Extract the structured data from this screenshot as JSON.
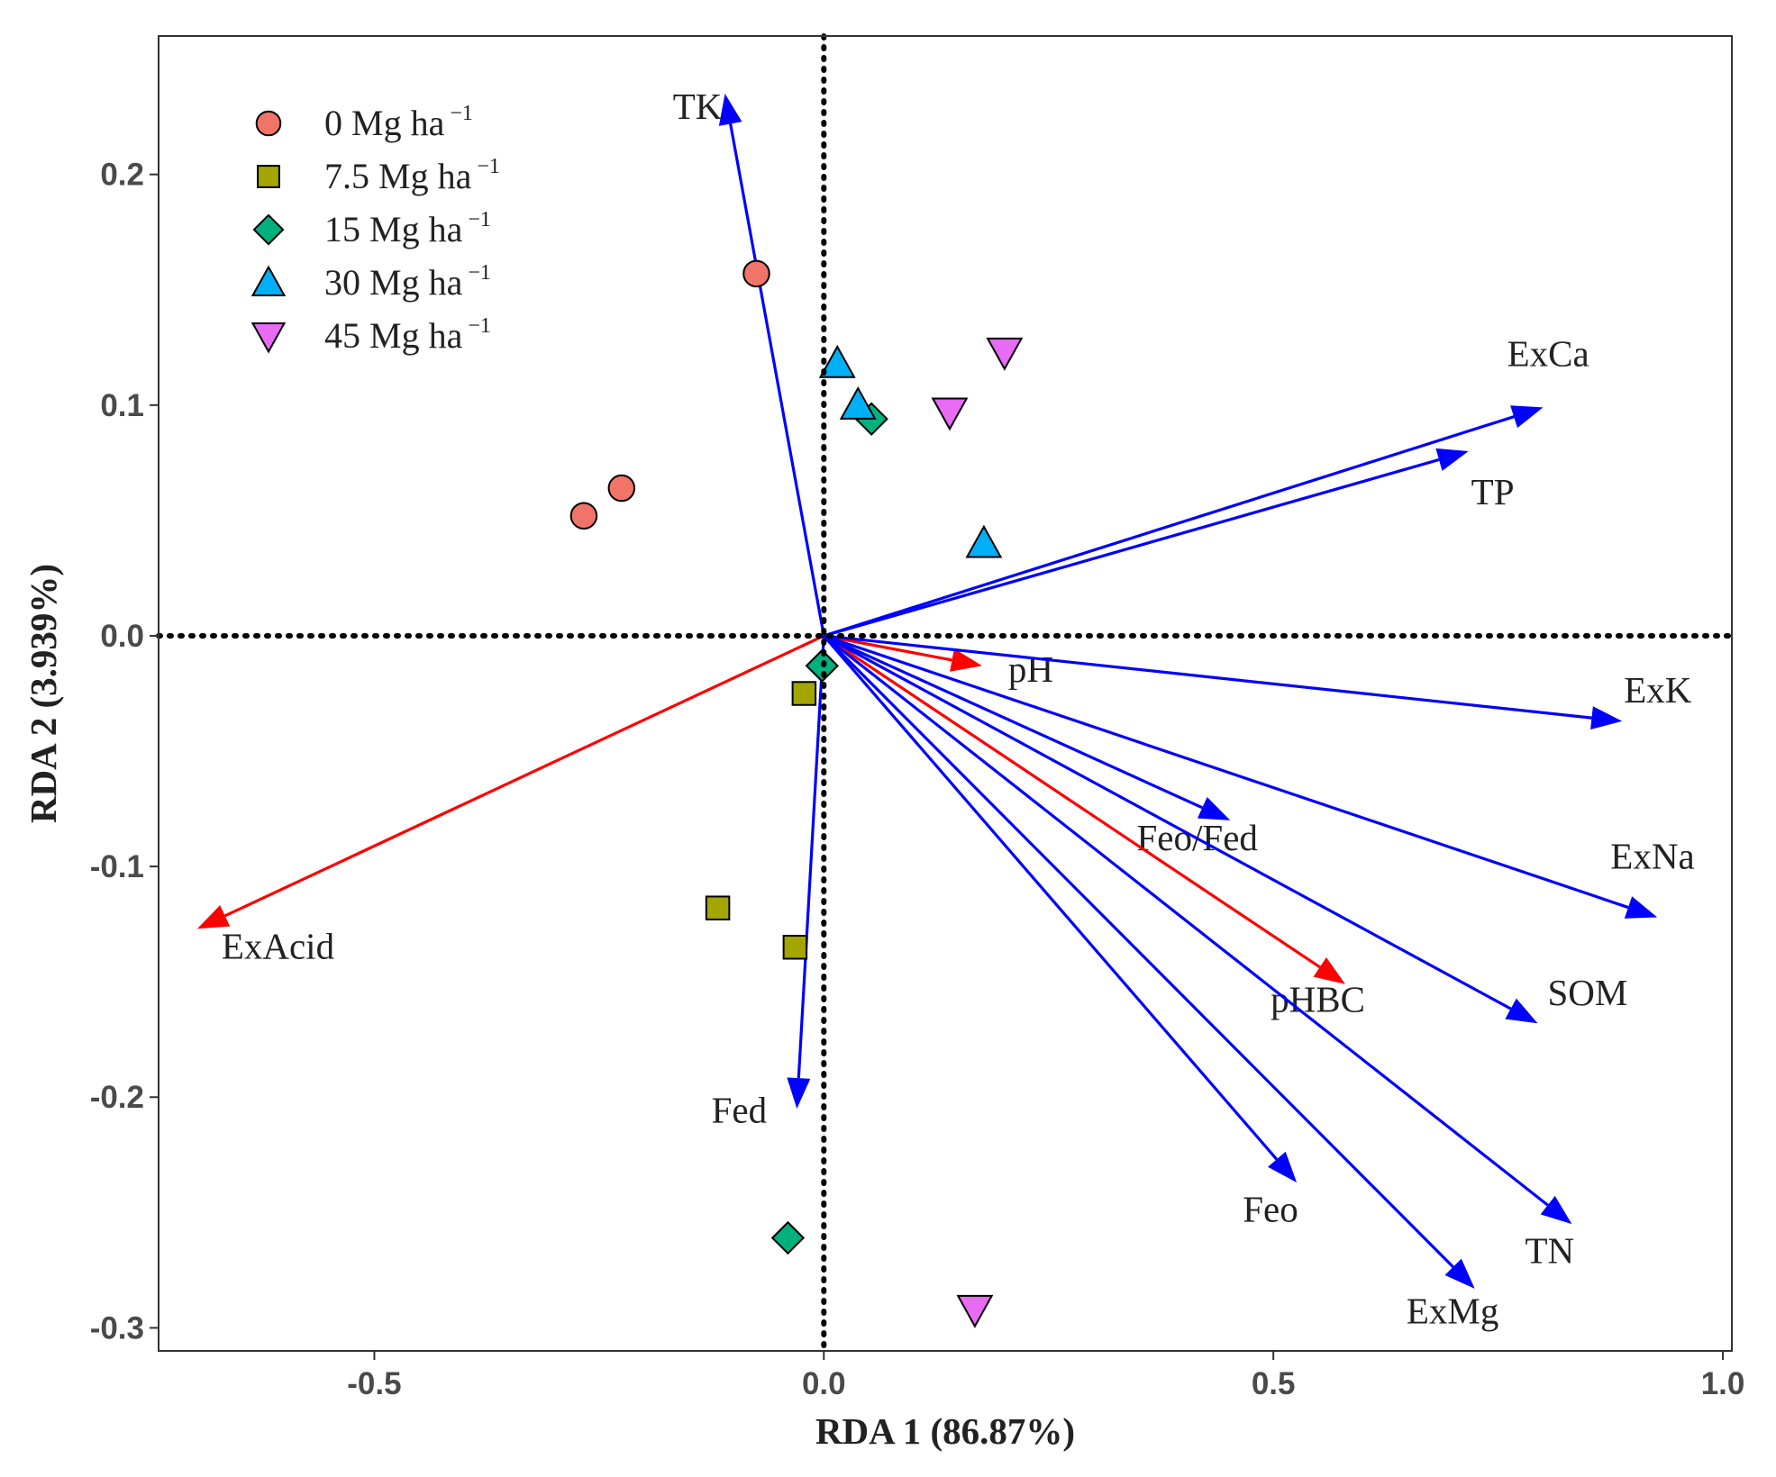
{
  "chart_data": {
    "type": "scatter",
    "subtype": "rda-biplot",
    "xlabel": "RDA 1 (86.87%)",
    "ylabel": "RDA 2 (3.939%)",
    "xlim": [
      -0.74,
      1.01
    ],
    "ylim": [
      -0.31,
      0.26
    ],
    "xticks": [
      -0.5,
      0.0,
      0.5,
      1.0
    ],
    "xtick_labels": [
      "-0.5",
      "0.0",
      "0.5",
      "1.0"
    ],
    "yticks": [
      -0.3,
      -0.2,
      -0.1,
      0.0,
      0.1,
      0.2
    ],
    "ytick_labels": [
      "-0.3",
      "-0.2",
      "-0.1",
      "0.0",
      "0.1",
      "0.2"
    ],
    "grid": false,
    "reference_lines": [
      {
        "axis": "x",
        "value": 0,
        "style": "dotted"
      },
      {
        "axis": "y",
        "value": 0,
        "style": "dotted"
      }
    ],
    "legend_placement": "top-left",
    "series": [
      {
        "name": "0 Mg ha",
        "sup": "−1",
        "marker": "circle",
        "color": "#F07468",
        "points": [
          [
            -0.075,
            0.157
          ],
          [
            -0.267,
            0.052
          ],
          [
            -0.225,
            0.064
          ]
        ]
      },
      {
        "name": "7.5 Mg ha",
        "sup": "−1",
        "marker": "square",
        "color": "#A3A500",
        "points": [
          [
            -0.022,
            -0.025
          ],
          [
            -0.118,
            -0.118
          ],
          [
            -0.032,
            -0.135
          ]
        ]
      },
      {
        "name": "15 Mg ha",
        "sup": "−1",
        "marker": "diamond",
        "color": "#00B07D",
        "points": [
          [
            0.053,
            0.094
          ],
          [
            -0.002,
            -0.013
          ],
          [
            -0.04,
            -0.261
          ]
        ]
      },
      {
        "name": "30 Mg ha",
        "sup": "−1",
        "marker": "triangle-up",
        "color": "#00B0F6",
        "points": [
          [
            0.015,
            0.118
          ],
          [
            0.038,
            0.1
          ],
          [
            0.178,
            0.04
          ]
        ]
      },
      {
        "name": "45 Mg ha",
        "sup": "−1",
        "marker": "triangle-down",
        "color": "#E76BF3",
        "points": [
          [
            0.201,
            0.123
          ],
          [
            0.14,
            0.097
          ],
          [
            0.168,
            -0.292
          ]
        ]
      }
    ],
    "arrows": [
      {
        "label": "TK",
        "x": -0.11,
        "y": 0.235,
        "color": "#0000FF",
        "lx": -0.168,
        "ly": 0.224
      },
      {
        "label": "ExCa",
        "x": 0.8,
        "y": 0.099,
        "color": "#0000FF",
        "lx": 0.76,
        "ly": 0.117
      },
      {
        "label": "TP",
        "x": 0.717,
        "y": 0.08,
        "color": "#0000FF",
        "lx": 0.72,
        "ly": 0.057
      },
      {
        "label": "pH",
        "x": 0.176,
        "y": -0.013,
        "color": "#FF0000",
        "lx": 0.205,
        "ly": -0.02
      },
      {
        "label": "ExK",
        "x": 0.888,
        "y": -0.037,
        "color": "#0000FF",
        "lx": 0.89,
        "ly": -0.029
      },
      {
        "label": "Feo/Fed",
        "x": 0.452,
        "y": -0.08,
        "color": "#0000FF",
        "lx": 0.348,
        "ly": -0.093
      },
      {
        "label": "ExNa",
        "x": 0.927,
        "y": -0.122,
        "color": "#0000FF",
        "lx": 0.875,
        "ly": -0.101
      },
      {
        "label": "ExAcid",
        "x": -0.697,
        "y": -0.127,
        "color": "#FF0000",
        "lx": -0.67,
        "ly": -0.14
      },
      {
        "label": "pHBC",
        "x": 0.58,
        "y": -0.151,
        "color": "#FF0000",
        "lx": 0.497,
        "ly": -0.163
      },
      {
        "label": "SOM",
        "x": 0.794,
        "y": -0.168,
        "color": "#0000FF",
        "lx": 0.805,
        "ly": -0.16
      },
      {
        "label": "Fed",
        "x": -0.03,
        "y": -0.205,
        "color": "#0000FF",
        "lx": -0.125,
        "ly": -0.211
      },
      {
        "label": "Feo",
        "x": 0.526,
        "y": -0.237,
        "color": "#0000FF",
        "lx": 0.466,
        "ly": -0.254
      },
      {
        "label": "TN",
        "x": 0.832,
        "y": -0.255,
        "color": "#0000FF",
        "lx": 0.78,
        "ly": -0.272
      },
      {
        "label": "ExMg",
        "x": 0.724,
        "y": -0.283,
        "color": "#0000FF",
        "lx": 0.648,
        "ly": -0.298
      }
    ]
  }
}
